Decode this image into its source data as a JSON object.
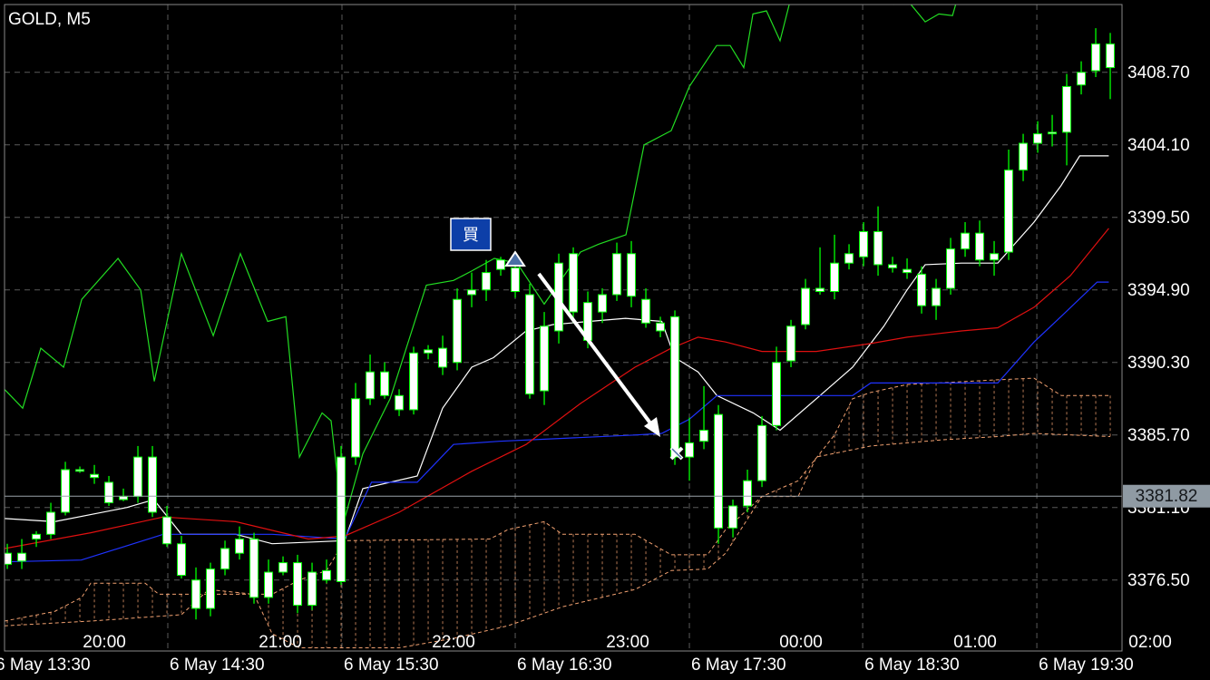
{
  "chart_data": {
    "type": "candlestick",
    "title": "GOLD, M5",
    "buy_label": "買",
    "last_price": 3381.82,
    "xlim": [
      -0.19,
      76.81
    ],
    "ylim": [
      3372.0,
      3413.0
    ],
    "yticks": [
      {
        "value": 3408.7,
        "label": "3408.70"
      },
      {
        "value": 3404.1,
        "label": "3404.10"
      },
      {
        "value": 3399.5,
        "label": "3399.50"
      },
      {
        "value": 3394.9,
        "label": "3394.90"
      },
      {
        "value": 3390.3,
        "label": "3390.30"
      },
      {
        "value": 3385.7,
        "label": "3385.70"
      },
      {
        "value": 3381.1,
        "label": "3381.10"
      },
      {
        "value": 3376.5,
        "label": "3376.50"
      }
    ],
    "xticks": [
      {
        "value": -0.94,
        "label": "6 May 13:30"
      },
      {
        "value": 11.06,
        "label": "6 May 14:30"
      },
      {
        "value": 23.06,
        "label": "6 May 15:30"
      },
      {
        "value": 35,
        "label": "6 May 16:30"
      },
      {
        "value": 47,
        "label": "6 May 17:30"
      },
      {
        "value": 58.94,
        "label": "6 May 18:30"
      },
      {
        "value": 70.94,
        "label": "6 May 19:30"
      }
    ],
    "x2ticks": [
      {
        "value": 6.69,
        "label": "20:00"
      },
      {
        "value": 18.81,
        "label": "21:00"
      },
      {
        "value": 30.75,
        "label": "22:00"
      },
      {
        "value": 42.75,
        "label": "23:00"
      },
      {
        "value": 54.69,
        "label": "00:00"
      },
      {
        "value": 66.69,
        "label": "01:00"
      },
      {
        "value": 78.75,
        "label": "02:00"
      }
    ],
    "grid": true,
    "candle_color": "#ffffff",
    "wick_color": "#00ff00",
    "ohlc": [
      [
        3377.5,
        3378.8,
        3377.2,
        3378.2
      ],
      [
        3377.7,
        3379.1,
        3377.2,
        3378.2
      ],
      [
        3379.1,
        3379.6,
        3378.6,
        3379.4
      ],
      [
        3379.4,
        3381.4,
        3379.1,
        3380.8
      ],
      [
        3380.8,
        3384.0,
        3380.6,
        3383.5
      ],
      [
        3383.5,
        3383.7,
        3383.3,
        3383.4
      ],
      [
        3383.2,
        3383.8,
        3382.6,
        3383.0
      ],
      [
        3382.7,
        3383.1,
        3381.2,
        3381.4
      ],
      [
        3381.8,
        3382.3,
        3381.5,
        3381.6
      ],
      [
        3381.8,
        3385.0,
        3381.4,
        3384.3
      ],
      [
        3384.3,
        3385.0,
        3380.5,
        3380.8
      ],
      [
        3380.5,
        3381.2,
        3378.6,
        3378.8
      ],
      [
        3378.8,
        3379.3,
        3376.6,
        3376.8
      ],
      [
        3376.5,
        3377.3,
        3374.0,
        3374.7
      ],
      [
        3374.7,
        3377.6,
        3374.2,
        3377.2
      ],
      [
        3377.2,
        3379.0,
        3376.8,
        3378.5
      ],
      [
        3378.2,
        3379.9,
        3377.8,
        3379.1
      ],
      [
        3379.1,
        3379.5,
        3375.0,
        3375.4
      ],
      [
        3375.4,
        3377.8,
        3375.0,
        3377.0
      ],
      [
        3377.0,
        3378.0,
        3376.8,
        3377.6
      ],
      [
        3377.6,
        3378.1,
        3374.4,
        3374.9
      ],
      [
        3374.9,
        3377.6,
        3374.6,
        3377.0
      ],
      [
        3376.5,
        3377.8,
        3376.3,
        3377.1
      ],
      [
        3376.4,
        3385.0,
        3376.2,
        3384.3
      ],
      [
        3384.3,
        3389.0,
        3383.8,
        3388.0
      ],
      [
        3388.0,
        3390.8,
        3387.6,
        3389.7
      ],
      [
        3389.7,
        3390.3,
        3388.0,
        3388.2
      ],
      [
        3388.2,
        3388.6,
        3386.9,
        3387.3
      ],
      [
        3387.3,
        3391.3,
        3387.0,
        3390.9
      ],
      [
        3390.9,
        3391.4,
        3390.5,
        3391.1
      ],
      [
        3391.2,
        3392.0,
        3389.5,
        3390.0
      ],
      [
        3390.3,
        3395.0,
        3389.8,
        3394.3
      ],
      [
        3394.6,
        3396.0,
        3393.8,
        3394.9
      ],
      [
        3394.9,
        3396.8,
        3394.2,
        3396.0
      ],
      [
        3396.2,
        3397.0,
        3395.8,
        3396.8
      ],
      [
        3396.3,
        3397.2,
        3394.4,
        3394.8
      ],
      [
        3394.6,
        3395.3,
        3388.0,
        3388.3
      ],
      [
        3388.5,
        3393.5,
        3387.6,
        3392.6
      ],
      [
        3392.3,
        3397.2,
        3391.5,
        3396.6
      ],
      [
        3397.2,
        3397.6,
        3392.8,
        3393.5
      ],
      [
        3394.1,
        3394.8,
        3391.2,
        3391.7
      ],
      [
        3393.5,
        3395.0,
        3392.8,
        3394.6
      ],
      [
        3394.6,
        3397.9,
        3394.2,
        3397.2
      ],
      [
        3397.2,
        3398.0,
        3393.8,
        3394.5
      ],
      [
        3394.3,
        3395.0,
        3392.5,
        3392.8
      ],
      [
        3392.8,
        3393.2,
        3391.9,
        3392.3
      ],
      [
        3393.2,
        3393.6,
        3383.8,
        3384.3
      ],
      [
        3384.3,
        3386.8,
        3382.8,
        3385.2
      ],
      [
        3385.3,
        3388.8,
        3384.8,
        3386.0
      ],
      [
        3387.0,
        3387.6,
        3378.8,
        3379.8
      ],
      [
        3379.8,
        3381.6,
        3379.2,
        3381.2
      ],
      [
        3381.2,
        3383.5,
        3380.8,
        3382.8
      ],
      [
        3382.8,
        3386.9,
        3382.4,
        3386.3
      ],
      [
        3386.3,
        3391.3,
        3386.0,
        3390.3
      ],
      [
        3390.4,
        3393.0,
        3390.0,
        3392.6
      ],
      [
        3392.7,
        3395.6,
        3392.4,
        3395.0
      ],
      [
        3395.0,
        3397.6,
        3394.6,
        3394.8
      ],
      [
        3394.8,
        3398.4,
        3394.3,
        3396.6
      ],
      [
        3396.6,
        3397.8,
        3396.2,
        3397.2
      ],
      [
        3397.0,
        3399.2,
        3396.4,
        3398.6
      ],
      [
        3398.6,
        3400.2,
        3395.8,
        3396.5
      ],
      [
        3396.5,
        3397.0,
        3396.0,
        3396.3
      ],
      [
        3396.2,
        3396.9,
        3395.6,
        3396.0
      ],
      [
        3395.9,
        3396.4,
        3393.4,
        3393.9
      ],
      [
        3393.9,
        3395.6,
        3393.0,
        3395.0
      ],
      [
        3395.0,
        3398.2,
        3394.6,
        3397.5
      ],
      [
        3397.5,
        3399.2,
        3397.0,
        3398.5
      ],
      [
        3398.5,
        3399.3,
        3396.4,
        3396.8
      ],
      [
        3396.8,
        3398.0,
        3395.8,
        3397.2
      ],
      [
        3397.3,
        3403.8,
        3396.8,
        3402.5
      ],
      [
        3402.5,
        3404.8,
        3401.8,
        3404.2
      ],
      [
        3404.2,
        3405.6,
        3403.6,
        3404.8
      ],
      [
        3404.8,
        3406.0,
        3404.0,
        3404.9
      ],
      [
        3404.9,
        3408.6,
        3402.8,
        3407.8
      ],
      [
        3407.9,
        3409.4,
        3407.3,
        3408.7
      ],
      [
        3408.8,
        3411.5,
        3408.4,
        3410.5
      ],
      [
        3410.5,
        3411.2,
        3407.0,
        3409.0
      ]
    ],
    "lines": [
      {
        "color": "#ffffff",
        "x": [
          -0.2,
          3.25,
          8.25,
          10.1,
          12,
          15.75,
          18.25,
          23.25,
          24.5,
          28.25,
          30,
          32,
          33.5,
          35.75,
          37.6,
          40.1,
          42.6,
          45.1,
          46,
          47.6,
          48.9,
          51.4,
          53.25,
          55.75,
          58.25,
          60.4,
          62,
          63.25,
          65.75,
          68.25,
          70.75,
          72.6,
          73.9,
          75.9
        ],
        "values": [
          3380.4,
          3380.2,
          3381.1,
          3381.6,
          3379.4,
          3379.4,
          3378.8,
          3379.0,
          3382.3,
          3383.1,
          3387.4,
          3390.0,
          3390.6,
          3392.3,
          3392.7,
          3392.9,
          3393.1,
          3392.9,
          3390.6,
          3389.7,
          3388.2,
          3387.1,
          3386.0,
          3388.0,
          3390.0,
          3392.6,
          3394.9,
          3396.5,
          3396.6,
          3396.6,
          3399.2,
          3401.5,
          3403.4,
          3403.4
        ]
      },
      {
        "color": "#1f33ff",
        "x": [
          -0.2,
          5.1,
          10.75,
          18.25,
          23.25,
          25.1,
          28.25,
          30.75,
          33.9,
          43.25,
          45.1,
          47,
          48.9,
          58.25,
          59.5,
          68.25,
          70.75,
          72.6,
          75.1,
          75.9
        ],
        "values": [
          3377.65,
          3377.77,
          3379.4,
          3379.4,
          3379.1,
          3382.7,
          3382.7,
          3385.1,
          3385.3,
          3385.7,
          3385.8,
          3386.7,
          3388.2,
          3388.2,
          3389.0,
          3389.0,
          3391.6,
          3393.2,
          3395.4,
          3395.4
        ]
      },
      {
        "color": "#e01010",
        "x": [
          -0.2,
          5.75,
          10.75,
          15.75,
          20.75,
          23.25,
          27,
          32,
          35.75,
          39.5,
          43.25,
          45.75,
          47.6,
          49.5,
          52,
          55.75,
          59.5,
          62,
          65.75,
          68.25,
          70.75,
          73.25,
          75.9
        ],
        "values": [
          3378.5,
          3379.5,
          3380.5,
          3380.2,
          3379.1,
          3379.3,
          3380.8,
          3383.4,
          3385.1,
          3387.7,
          3390.0,
          3391.2,
          3391.9,
          3391.6,
          3391.0,
          3391.0,
          3391.5,
          3391.9,
          3392.3,
          3392.5,
          3393.8,
          3395.8,
          3398.8
        ]
      },
      {
        "color": "#22dd22",
        "x": [
          -0.2,
          1.06,
          2.31,
          3.88,
          5.13,
          7.63,
          9.19,
          10.13,
          12,
          14.19,
          16.06,
          17.94,
          19.19,
          20.13,
          21.69,
          22.31,
          23.13,
          24.5,
          26.38,
          28.88,
          30.75,
          32,
          33.56,
          35.13,
          37,
          39.5,
          40.75,
          42.63,
          43.88,
          45.75,
          47,
          48.88,
          49.81,
          50.75,
          51.38,
          52.31,
          53.25,
          53.88,
          null,
          61.06,
          62,
          63.25,
          64.19,
          65.13,
          65.44
        ],
        "values": [
          3388.6,
          3387.4,
          3391.2,
          3390.0,
          3394.3,
          3396.9,
          3394.9,
          3389.1,
          3397.2,
          3392.0,
          3397.2,
          3392.9,
          3393.2,
          3384.3,
          3387.1,
          3386.6,
          3380.0,
          3384.5,
          3388.0,
          3395.2,
          3395.5,
          3396.1,
          3396.9,
          3396.6,
          3394.0,
          3397.3,
          3397.8,
          3398.4,
          3404.1,
          3405.0,
          3407.8,
          3410.4,
          3410.4,
          3409.0,
          3412.4,
          3412.6,
          3410.7,
          3413.0,
          null,
          3413.0,
          3413.3,
          3411.9,
          3412.4,
          3412.3,
          3413.3
        ]
      }
    ],
    "cloud": {
      "color": "#f0a070",
      "upper": {
        "x": [
          -0.2,
          3.25,
          5.13,
          5.75,
          9.5,
          10.44,
          18.25,
          20.13,
          22,
          23.25,
          33.25,
          34.5,
          37,
          38.25,
          43.25,
          45.75,
          48.25,
          49.5,
          52,
          54.5,
          57,
          58.25,
          59.5,
          62,
          68.25,
          70.75,
          72.63,
          76
        ],
        "values": [
          3373.9,
          3374.5,
          3375.4,
          3376.3,
          3376.3,
          3375.6,
          3375.6,
          3376.5,
          3377.1,
          3379.0,
          3379.1,
          3379.7,
          3380.2,
          3379.4,
          3379.4,
          3378.1,
          3378.1,
          3379.7,
          3381.8,
          3382.8,
          3385.7,
          3388.0,
          3388.4,
          3388.9,
          3389.2,
          3389.3,
          3388.2,
          3388.2
        ]
      },
      "lower": {
        "x": [
          -0.2,
          5.75,
          12,
          13.88,
          17,
          18.25,
          20.13,
          27,
          30.75,
          34.5,
          38.25,
          43.25,
          45.75,
          48.25,
          49.5,
          52,
          54.5,
          55.75,
          59.5,
          64.5,
          68.25,
          70.75,
          76
        ],
        "values": [
          3373.6,
          3373.9,
          3374.3,
          3375.9,
          3375.6,
          3373.1,
          3372.2,
          3372.2,
          3372.8,
          3373.6,
          3374.8,
          3375.9,
          3377.1,
          3377.2,
          3378.2,
          3381.8,
          3381.8,
          3384.3,
          3385.0,
          3385.4,
          3385.6,
          3385.8,
          3385.6
        ]
      }
    }
  }
}
